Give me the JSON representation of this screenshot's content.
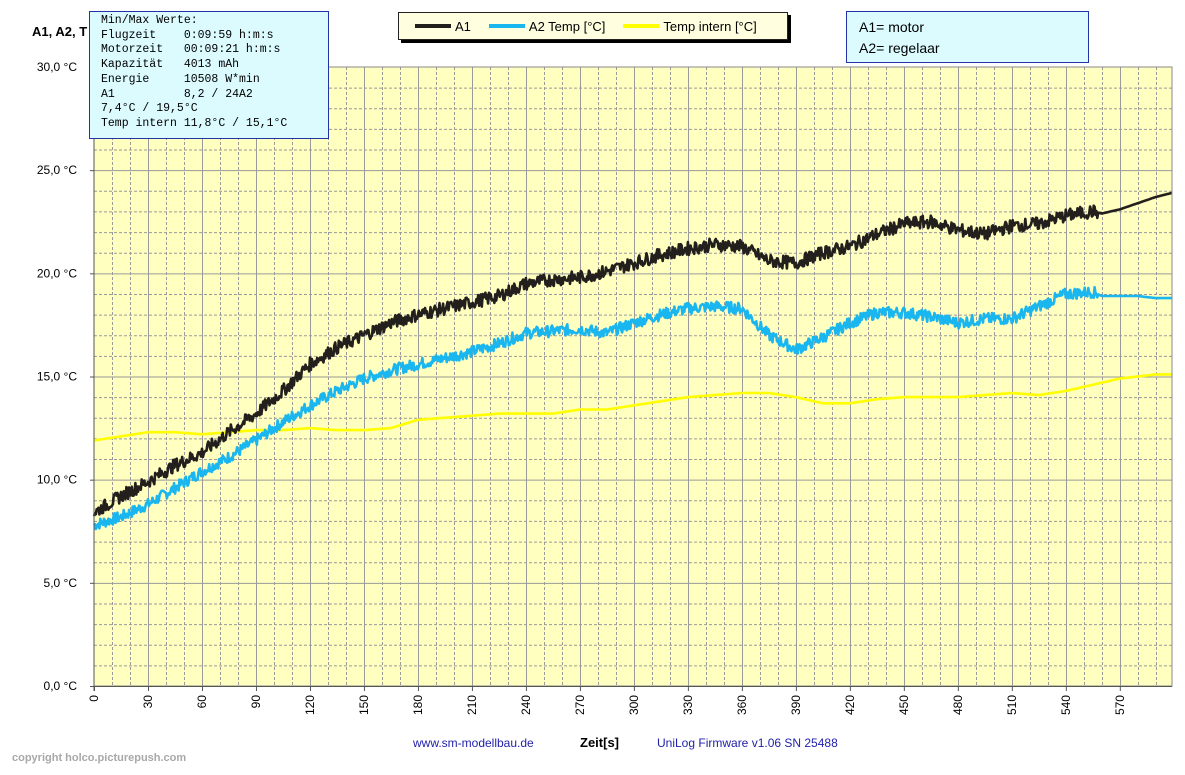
{
  "y_axis_title": "A1, A2, T",
  "info_box": {
    "lines": [
      "Min/Max Werte:",
      "Flugzeit    0:09:59 h:m:s",
      "Motorzeit   00:09:21 h:m:s",
      "Kapazität   4013 mAh",
      "Energie     10508 W*min",
      "A1          8,2 / 24A2",
      "7,4°C / 19,5°C",
      "Temp intern 11,8°C / 15,1°C"
    ]
  },
  "note_box": {
    "lines": [
      "A1= motor",
      "A2= regelaar"
    ]
  },
  "legend": [
    {
      "label": "A1",
      "color": "#231f1c"
    },
    {
      "label": "A2 Temp [°C]",
      "color": "#1ab6f0"
    },
    {
      "label": "Temp intern [°C]",
      "color": "#ffff00"
    }
  ],
  "footer": {
    "link": "www.sm-modellbau.de",
    "xlabel": "Zeit[s]",
    "firmware": "UniLog Firmware v1.06 SN 25488",
    "copyright": "copyright holco.picturepush.com"
  },
  "colors": {
    "plot_bg": "#ffffc0",
    "grid": "#9a9a9a",
    "a1": "#231f1c",
    "a2": "#1ab6f0",
    "intern": "#ffff00"
  },
  "chart_data": {
    "type": "line",
    "xlabel": "Zeit[s]",
    "ylabel": "A1, A2, T",
    "xlim": [
      0,
      599
    ],
    "ylim": [
      0,
      30
    ],
    "x_ticks": [
      0,
      30,
      60,
      90,
      120,
      150,
      180,
      210,
      240,
      270,
      300,
      330,
      360,
      390,
      420,
      450,
      480,
      510,
      540,
      570
    ],
    "y_ticks": [
      0,
      5,
      10,
      15,
      20,
      25,
      30
    ],
    "y_tick_labels": [
      "0,0 °C",
      "5,0 °C",
      "10,0 °C",
      "15,0 °C",
      "20,0 °C",
      "25,0 °C",
      "30,0 °C"
    ],
    "grid": true,
    "series": [
      {
        "name": "A1",
        "x": [
          0,
          15,
          30,
          45,
          60,
          75,
          90,
          105,
          120,
          135,
          150,
          165,
          180,
          195,
          210,
          225,
          240,
          255,
          270,
          285,
          300,
          315,
          330,
          345,
          360,
          375,
          390,
          405,
          420,
          435,
          450,
          465,
          480,
          495,
          510,
          525,
          540,
          555,
          560,
          570,
          580,
          590,
          599
        ],
        "values": [
          8.4,
          9.2,
          9.9,
          10.7,
          11.3,
          12.3,
          13.2,
          14.3,
          15.6,
          16.4,
          17.0,
          17.6,
          18.0,
          18.3,
          18.6,
          18.9,
          19.5,
          19.7,
          19.8,
          20.1,
          20.5,
          20.9,
          21.2,
          21.4,
          21.3,
          20.6,
          20.5,
          21.0,
          21.3,
          21.9,
          22.4,
          22.5,
          22.1,
          21.9,
          22.3,
          22.4,
          22.8,
          23.0,
          22.9,
          23.1,
          23.4,
          23.7,
          23.9
        ]
      },
      {
        "name": "A2 Temp [°C]",
        "x": [
          0,
          15,
          30,
          45,
          60,
          75,
          90,
          105,
          120,
          135,
          150,
          165,
          180,
          195,
          210,
          225,
          240,
          255,
          270,
          285,
          300,
          315,
          330,
          345,
          360,
          375,
          390,
          405,
          420,
          435,
          450,
          465,
          480,
          495,
          510,
          525,
          540,
          555,
          560,
          570,
          580,
          590,
          599
        ],
        "values": [
          7.8,
          8.2,
          8.8,
          9.6,
          10.4,
          11.1,
          11.9,
          12.8,
          13.6,
          14.3,
          14.9,
          15.3,
          15.6,
          15.9,
          16.2,
          16.6,
          17.1,
          17.2,
          17.3,
          17.1,
          17.6,
          18.0,
          18.3,
          18.4,
          18.3,
          17.0,
          16.3,
          16.9,
          17.6,
          18.1,
          18.1,
          17.9,
          17.6,
          17.8,
          17.8,
          18.4,
          19.0,
          19.1,
          18.9,
          18.9,
          18.9,
          18.8,
          18.8
        ]
      },
      {
        "name": "Temp intern [°C]",
        "x": [
          0,
          15,
          30,
          45,
          60,
          75,
          90,
          105,
          120,
          135,
          150,
          165,
          180,
          195,
          210,
          225,
          240,
          255,
          270,
          285,
          300,
          315,
          330,
          345,
          360,
          375,
          390,
          405,
          420,
          435,
          450,
          465,
          480,
          495,
          510,
          525,
          540,
          555,
          560,
          570,
          580,
          590,
          599
        ],
        "values": [
          11.9,
          12.1,
          12.3,
          12.3,
          12.2,
          12.3,
          12.4,
          12.4,
          12.5,
          12.4,
          12.4,
          12.5,
          12.9,
          13.0,
          13.1,
          13.2,
          13.2,
          13.2,
          13.4,
          13.4,
          13.6,
          13.8,
          14.0,
          14.1,
          14.2,
          14.2,
          14.0,
          13.7,
          13.7,
          13.9,
          14.0,
          14.0,
          14.0,
          14.1,
          14.2,
          14.1,
          14.3,
          14.6,
          14.7,
          14.9,
          15.0,
          15.1,
          15.1
        ]
      }
    ]
  }
}
